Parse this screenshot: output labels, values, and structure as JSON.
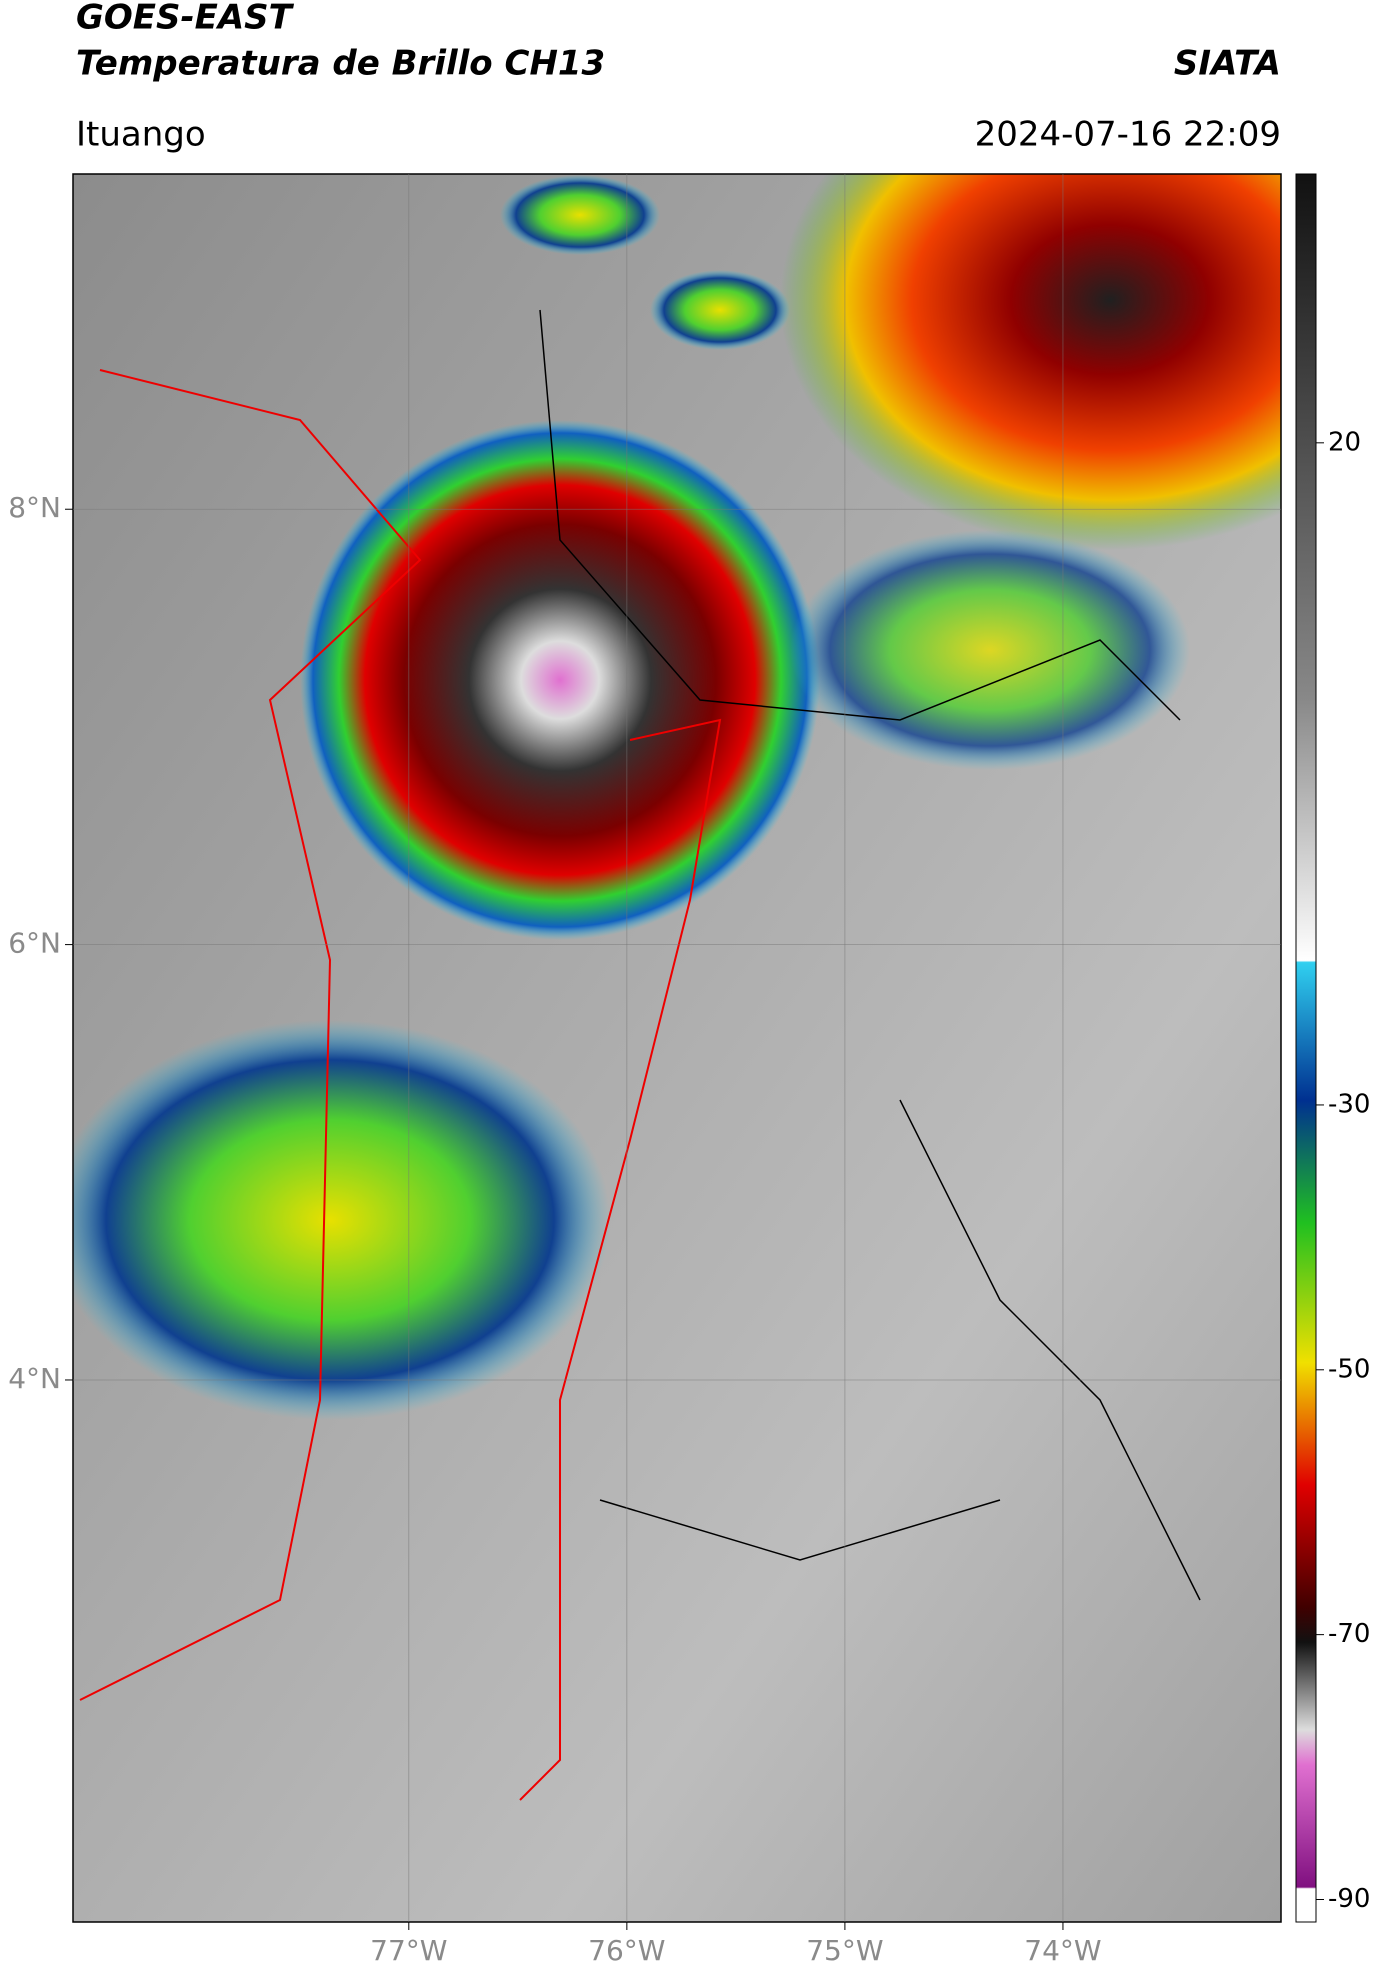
{
  "header": {
    "title": "GOES-EAST",
    "subtitle": "Temperatura de Brillo CH13",
    "source": "SIATA",
    "location": "Ituango",
    "timestamp": "2024-07-16 22:09"
  },
  "map": {
    "latlim": [
      9.54,
      1.51
    ],
    "lonlim": [
      -78.54,
      -73.0
    ],
    "lat_ticks": [
      {
        "value": 8,
        "label": "8°N"
      },
      {
        "value": 6,
        "label": "6°N"
      },
      {
        "value": 4,
        "label": "4°N"
      }
    ],
    "lon_ticks": [
      {
        "value": -77,
        "label": "77°W"
      },
      {
        "value": -76,
        "label": "76°W"
      },
      {
        "value": -75,
        "label": "75°W"
      },
      {
        "value": -74,
        "label": "74°W"
      }
    ]
  },
  "colorbar": {
    "range": [
      40.3,
      -91.7
    ],
    "ticks": [
      20,
      -30,
      -50,
      -70,
      -90
    ]
  }
}
